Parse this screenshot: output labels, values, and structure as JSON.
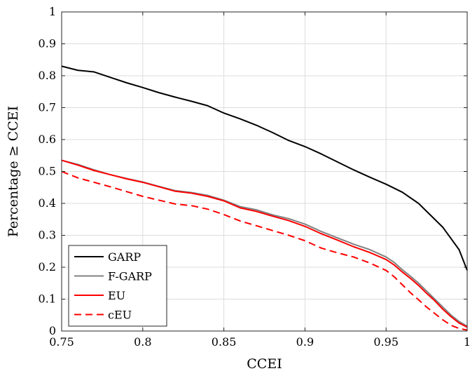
{
  "chart_data": {
    "type": "line",
    "title": "",
    "xlabel": "CCEI",
    "ylabel": "Percentage ≥ CCEI",
    "xlim": [
      0.75,
      1.0
    ],
    "ylim": [
      0,
      1
    ],
    "x_ticks": [
      0.75,
      0.8,
      0.85,
      0.9,
      0.95,
      1.0
    ],
    "x_tick_labels": [
      "0.75",
      "0.8",
      "0.85",
      "0.9",
      "0.95",
      "1"
    ],
    "y_ticks": [
      0,
      0.1,
      0.2,
      0.3,
      0.4,
      0.5,
      0.6,
      0.7,
      0.8,
      0.9,
      1
    ],
    "y_tick_labels": [
      "0",
      "0.1",
      "0.2",
      "0.3",
      "0.4",
      "0.5",
      "0.6",
      "0.7",
      "0.8",
      "0.9",
      "1"
    ],
    "grid": true,
    "legend_position": "bottom-left",
    "series": [
      {
        "name": "GARP",
        "color": "#000000",
        "dash": "solid",
        "x": [
          0.75,
          0.76,
          0.77,
          0.78,
          0.79,
          0.8,
          0.81,
          0.82,
          0.83,
          0.84,
          0.85,
          0.86,
          0.87,
          0.88,
          0.89,
          0.9,
          0.91,
          0.92,
          0.93,
          0.94,
          0.95,
          0.96,
          0.97,
          0.975,
          0.98,
          0.985,
          0.99,
          0.995,
          1.0
        ],
        "y": [
          0.83,
          0.817,
          0.812,
          0.795,
          0.778,
          0.763,
          0.747,
          0.733,
          0.72,
          0.706,
          0.683,
          0.665,
          0.645,
          0.622,
          0.597,
          0.578,
          0.555,
          0.53,
          0.505,
          0.482,
          0.46,
          0.435,
          0.4,
          0.375,
          0.35,
          0.325,
          0.29,
          0.255,
          0.19
        ]
      },
      {
        "name": "F-GARP",
        "color": "#808080",
        "dash": "solid",
        "x": [
          0.75,
          0.76,
          0.77,
          0.78,
          0.79,
          0.8,
          0.81,
          0.82,
          0.83,
          0.84,
          0.85,
          0.86,
          0.87,
          0.88,
          0.89,
          0.9,
          0.91,
          0.92,
          0.93,
          0.94,
          0.95,
          0.955,
          0.96,
          0.965,
          0.97,
          0.975,
          0.98,
          0.985,
          0.99,
          0.995,
          1.0
        ],
        "y": [
          0.535,
          0.522,
          0.505,
          0.49,
          0.478,
          0.467,
          0.453,
          0.44,
          0.434,
          0.425,
          0.41,
          0.39,
          0.38,
          0.364,
          0.352,
          0.335,
          0.312,
          0.292,
          0.272,
          0.255,
          0.232,
          0.215,
          0.192,
          0.172,
          0.15,
          0.125,
          0.1,
          0.075,
          0.05,
          0.03,
          0.015
        ]
      },
      {
        "name": "EU",
        "color": "#ff0000",
        "dash": "solid",
        "x": [
          0.75,
          0.76,
          0.77,
          0.78,
          0.79,
          0.8,
          0.81,
          0.82,
          0.83,
          0.84,
          0.85,
          0.86,
          0.87,
          0.88,
          0.89,
          0.9,
          0.91,
          0.92,
          0.93,
          0.94,
          0.95,
          0.955,
          0.96,
          0.965,
          0.97,
          0.975,
          0.98,
          0.985,
          0.99,
          0.995,
          1.0
        ],
        "y": [
          0.535,
          0.52,
          0.503,
          0.49,
          0.477,
          0.466,
          0.452,
          0.438,
          0.432,
          0.422,
          0.408,
          0.386,
          0.375,
          0.36,
          0.346,
          0.328,
          0.305,
          0.285,
          0.264,
          0.246,
          0.224,
          0.207,
          0.185,
          0.165,
          0.143,
          0.118,
          0.095,
          0.068,
          0.045,
          0.025,
          0.012
        ]
      },
      {
        "name": "cEU",
        "color": "#ff0000",
        "dash": "dashed",
        "x": [
          0.75,
          0.76,
          0.77,
          0.78,
          0.79,
          0.8,
          0.81,
          0.82,
          0.83,
          0.84,
          0.85,
          0.86,
          0.87,
          0.88,
          0.89,
          0.9,
          0.91,
          0.92,
          0.93,
          0.94,
          0.95,
          0.955,
          0.96,
          0.965,
          0.97,
          0.975,
          0.98,
          0.985,
          0.99,
          0.995,
          1.0
        ],
        "y": [
          0.5,
          0.48,
          0.466,
          0.452,
          0.437,
          0.422,
          0.41,
          0.398,
          0.393,
          0.382,
          0.365,
          0.345,
          0.33,
          0.315,
          0.3,
          0.283,
          0.26,
          0.245,
          0.232,
          0.213,
          0.19,
          0.17,
          0.145,
          0.12,
          0.098,
          0.075,
          0.055,
          0.035,
          0.018,
          0.008,
          0.003
        ]
      }
    ]
  }
}
